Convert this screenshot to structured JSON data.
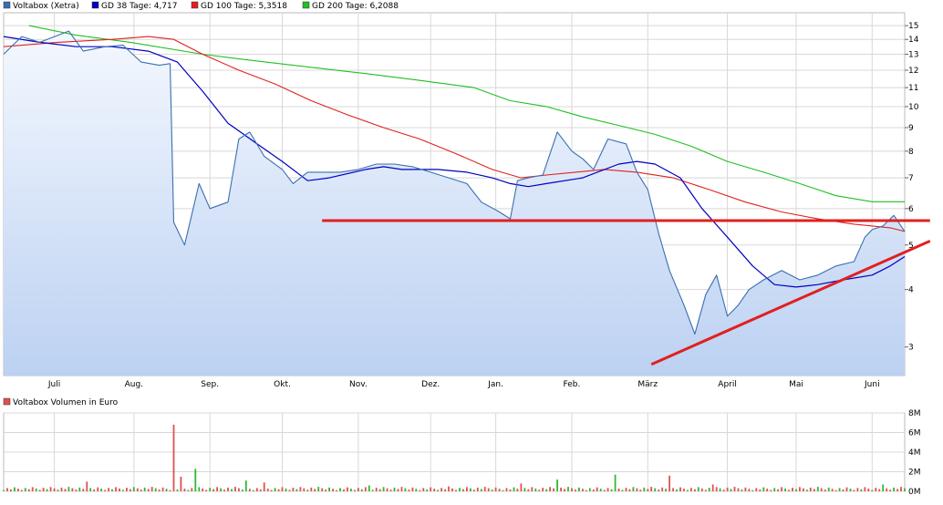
{
  "legend": [
    {
      "label": "Voltabox (Xetra)",
      "color": "#3a6fb0"
    },
    {
      "label": "GD 38 Tage: 4,717",
      "color": "#0000c0"
    },
    {
      "label": "GD 100 Tage: 5,3518",
      "color": "#e02020"
    },
    {
      "label": "GD 200 Tage: 6,2088",
      "color": "#20c020"
    }
  ],
  "volume_legend": {
    "label": "Voltabox Volumen in Euro",
    "color": "#e05050"
  },
  "colors": {
    "price": "#3a6fb0",
    "gd38": "#0000c0",
    "gd100": "#e02020",
    "gd200": "#20c020",
    "trend": "#e02020",
    "vol_up": "#2fb82f",
    "vol_down": "#e05050",
    "grid": "#d8d8d8"
  },
  "chart_data": [
    {
      "type": "line",
      "scale": "log",
      "x_labels": [
        "Juli",
        "Aug.",
        "Sep.",
        "Okt.",
        "Nov.",
        "Dez.",
        "Jan.",
        "Feb.",
        "März",
        "April",
        "Mai",
        "Juni"
      ],
      "y_ticks": [
        3,
        4,
        5,
        6,
        7,
        8,
        9,
        10,
        11,
        12,
        13,
        14,
        15
      ],
      "ylim": [
        2.6,
        16
      ],
      "n_days": 250,
      "month_start_days": [
        14,
        36,
        57,
        77,
        98,
        118,
        136,
        157,
        178,
        200,
        219,
        240
      ],
      "series": [
        {
          "name": "Voltabox (Xetra)",
          "points": [
            [
              0,
              13.0
            ],
            [
              5,
              14.2
            ],
            [
              10,
              13.8
            ],
            [
              18,
              14.6
            ],
            [
              22,
              13.2
            ],
            [
              28,
              13.5
            ],
            [
              33,
              13.6
            ],
            [
              38,
              12.5
            ],
            [
              43,
              12.3
            ],
            [
              46,
              12.4
            ],
            [
              47,
              5.6
            ],
            [
              50,
              5.0
            ],
            [
              54,
              6.8
            ],
            [
              57,
              6.0
            ],
            [
              62,
              6.2
            ],
            [
              65,
              8.5
            ],
            [
              68,
              8.8
            ],
            [
              72,
              7.8
            ],
            [
              77,
              7.3
            ],
            [
              80,
              6.8
            ],
            [
              84,
              7.2
            ],
            [
              88,
              7.2
            ],
            [
              93,
              7.2
            ],
            [
              98,
              7.3
            ],
            [
              103,
              7.5
            ],
            [
              108,
              7.5
            ],
            [
              113,
              7.4
            ],
            [
              118,
              7.2
            ],
            [
              123,
              7.0
            ],
            [
              128,
              6.8
            ],
            [
              132,
              6.2
            ],
            [
              137,
              5.9
            ],
            [
              140,
              5.7
            ],
            [
              142,
              6.9
            ],
            [
              145,
              7.0
            ],
            [
              149,
              7.1
            ],
            [
              153,
              8.8
            ],
            [
              157,
              8.0
            ],
            [
              160,
              7.7
            ],
            [
              163,
              7.3
            ],
            [
              167,
              8.5
            ],
            [
              172,
              8.3
            ],
            [
              175,
              7.2
            ],
            [
              178,
              6.6
            ],
            [
              181,
              5.3
            ],
            [
              184,
              4.4
            ],
            [
              188,
              3.7
            ],
            [
              191,
              3.2
            ],
            [
              194,
              3.9
            ],
            [
              197,
              4.3
            ],
            [
              200,
              3.5
            ],
            [
              203,
              3.7
            ],
            [
              206,
              4.0
            ],
            [
              210,
              4.2
            ],
            [
              215,
              4.4
            ],
            [
              220,
              4.2
            ],
            [
              225,
              4.3
            ],
            [
              230,
              4.5
            ],
            [
              235,
              4.6
            ],
            [
              238,
              5.2
            ],
            [
              240,
              5.4
            ],
            [
              243,
              5.5
            ],
            [
              246,
              5.8
            ],
            [
              248,
              5.5
            ],
            [
              249,
              5.35
            ]
          ]
        },
        {
          "name": "GD 38 Tage",
          "value": 4.717,
          "points": [
            [
              0,
              14.2
            ],
            [
              10,
              13.8
            ],
            [
              20,
              13.5
            ],
            [
              30,
              13.5
            ],
            [
              40,
              13.2
            ],
            [
              48,
              12.5
            ],
            [
              55,
              10.8
            ],
            [
              62,
              9.2
            ],
            [
              70,
              8.3
            ],
            [
              77,
              7.6
            ],
            [
              84,
              6.9
            ],
            [
              90,
              7.0
            ],
            [
              100,
              7.3
            ],
            [
              105,
              7.4
            ],
            [
              110,
              7.3
            ],
            [
              120,
              7.3
            ],
            [
              128,
              7.2
            ],
            [
              135,
              7.0
            ],
            [
              140,
              6.8
            ],
            [
              145,
              6.7
            ],
            [
              150,
              6.8
            ],
            [
              160,
              7.0
            ],
            [
              170,
              7.5
            ],
            [
              175,
              7.6
            ],
            [
              180,
              7.5
            ],
            [
              187,
              7.0
            ],
            [
              193,
              6.0
            ],
            [
              200,
              5.2
            ],
            [
              207,
              4.5
            ],
            [
              213,
              4.1
            ],
            [
              219,
              4.05
            ],
            [
              225,
              4.1
            ],
            [
              232,
              4.2
            ],
            [
              240,
              4.3
            ],
            [
              245,
              4.5
            ],
            [
              249,
              4.717
            ]
          ]
        },
        {
          "name": "GD 100 Tage",
          "value": 5.3518,
          "points": [
            [
              0,
              13.5
            ],
            [
              15,
              13.8
            ],
            [
              30,
              14.0
            ],
            [
              40,
              14.2
            ],
            [
              47,
              14.0
            ],
            [
              55,
              13.0
            ],
            [
              65,
              12.0
            ],
            [
              75,
              11.2
            ],
            [
              85,
              10.3
            ],
            [
              95,
              9.6
            ],
            [
              105,
              9.0
            ],
            [
              115,
              8.5
            ],
            [
              125,
              7.9
            ],
            [
              135,
              7.3
            ],
            [
              143,
              7.0
            ],
            [
              150,
              7.1
            ],
            [
              158,
              7.2
            ],
            [
              166,
              7.3
            ],
            [
              175,
              7.2
            ],
            [
              185,
              7.0
            ],
            [
              195,
              6.6
            ],
            [
              205,
              6.2
            ],
            [
              215,
              5.9
            ],
            [
              225,
              5.7
            ],
            [
              235,
              5.55
            ],
            [
              245,
              5.45
            ],
            [
              249,
              5.3518
            ]
          ]
        },
        {
          "name": "GD 200 Tage",
          "value": 6.2088,
          "points": [
            [
              7,
              15.0
            ],
            [
              20,
              14.3
            ],
            [
              35,
              13.8
            ],
            [
              55,
              13.0
            ],
            [
              65,
              12.7
            ],
            [
              80,
              12.3
            ],
            [
              100,
              11.8
            ],
            [
              115,
              11.4
            ],
            [
              130,
              11.0
            ],
            [
              140,
              10.3
            ],
            [
              150,
              10.0
            ],
            [
              160,
              9.5
            ],
            [
              170,
              9.1
            ],
            [
              180,
              8.7
            ],
            [
              190,
              8.2
            ],
            [
              200,
              7.6
            ],
            [
              210,
              7.2
            ],
            [
              220,
              6.8
            ],
            [
              230,
              6.4
            ],
            [
              240,
              6.2088
            ],
            [
              249,
              6.2088
            ]
          ]
        }
      ]
    },
    {
      "type": "bar",
      "title": "Voltabox Volumen in Euro",
      "y_ticks": [
        "0M",
        "2M",
        "4M",
        "6M",
        "8M"
      ],
      "y_tick_values": [
        0,
        2,
        4,
        6,
        8
      ],
      "ylim": [
        0,
        8
      ],
      "spikes": [
        [
          47,
          6.8,
          "down"
        ],
        [
          53,
          2.3,
          "up"
        ],
        [
          49,
          1.5,
          "down"
        ],
        [
          67,
          1.1,
          "up"
        ],
        [
          23,
          1.0,
          "down"
        ],
        [
          153,
          1.2,
          "up"
        ],
        [
          169,
          1.7,
          "up"
        ],
        [
          184,
          1.6,
          "down"
        ],
        [
          72,
          0.9,
          "down"
        ],
        [
          143,
          0.8,
          "down"
        ],
        [
          101,
          0.6,
          "up"
        ],
        [
          123,
          0.5,
          "down"
        ],
        [
          196,
          0.7,
          "down"
        ],
        [
          243,
          0.7,
          "up"
        ]
      ]
    }
  ],
  "annotations": {
    "resistance_level": 5.65,
    "resistance_from_day": 88,
    "resistance_to_day": 256,
    "trendline": [
      [
        179,
        2.75
      ],
      [
        256,
        5.1
      ]
    ]
  }
}
